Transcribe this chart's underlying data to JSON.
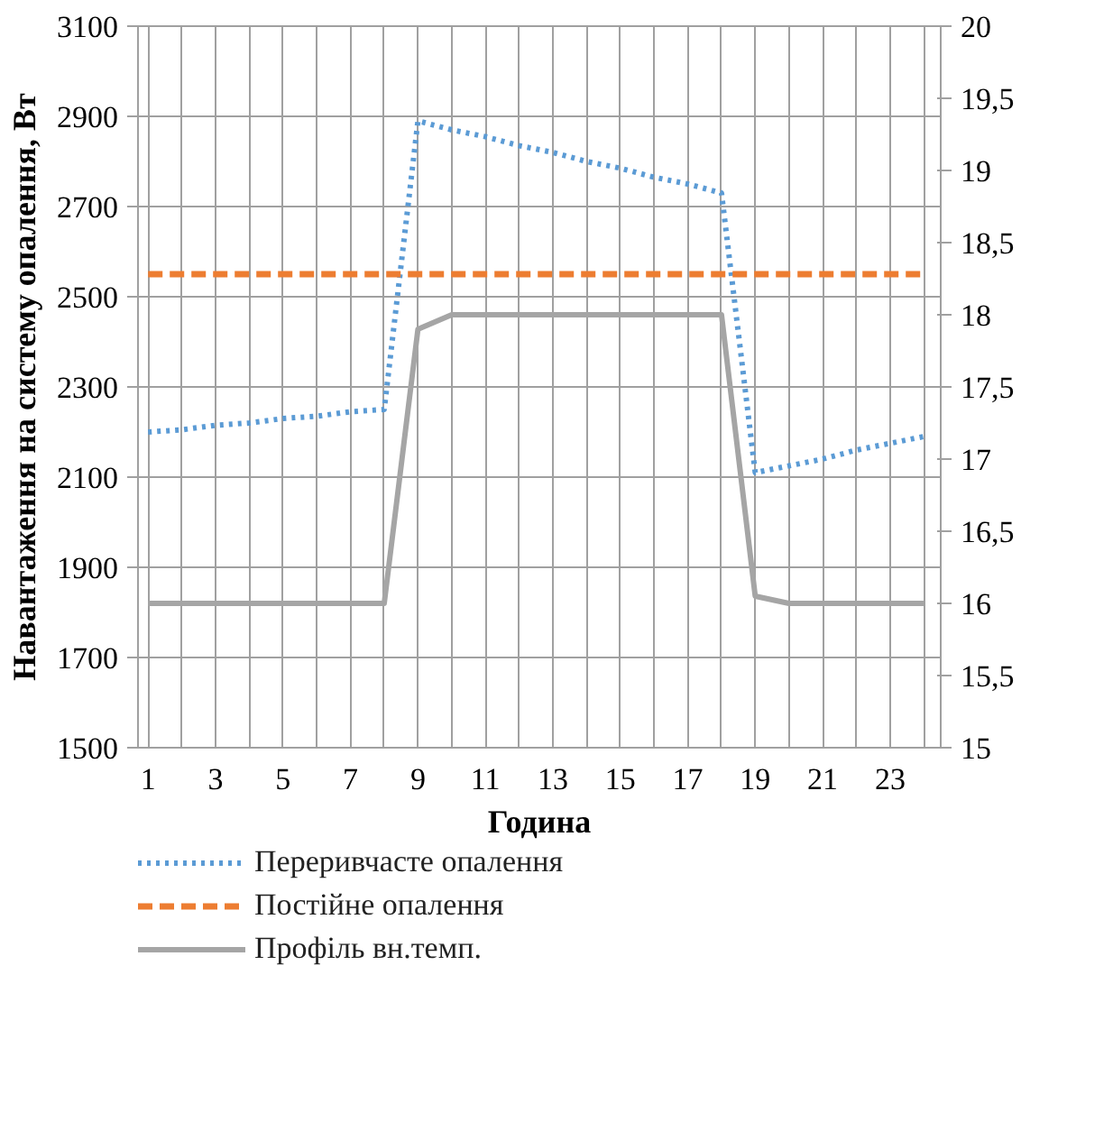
{
  "chart_data": {
    "type": "line",
    "xlabel": "Година",
    "ylabel": "Навантаження на систему опалення, Вт",
    "x": [
      1,
      2,
      3,
      4,
      5,
      6,
      7,
      8,
      9,
      10,
      11,
      12,
      13,
      14,
      15,
      16,
      17,
      18,
      19,
      20,
      21,
      22,
      23,
      24
    ],
    "xlim": [
      0.7,
      24.5
    ],
    "xticks": [
      1,
      {
        "value": 2,
        "label": null
      },
      3,
      {
        "value": 4,
        "label": null
      },
      5,
      {
        "value": 6,
        "label": null
      },
      7,
      {
        "value": 8,
        "label": null
      },
      9,
      {
        "value": 10,
        "label": null
      },
      11,
      {
        "value": 12,
        "label": null
      },
      13,
      {
        "value": 14,
        "label": null
      },
      15,
      {
        "value": 16,
        "label": null
      },
      17,
      {
        "value": 18,
        "label": null
      },
      19,
      {
        "value": 20,
        "label": null
      },
      21,
      {
        "value": 22,
        "label": null
      },
      23,
      {
        "value": 24,
        "label": null
      }
    ],
    "ylim": [
      1500,
      3100
    ],
    "yticks": [
      1500,
      1700,
      1900,
      2100,
      2300,
      2500,
      2700,
      2900,
      3100
    ],
    "y2lim": [
      15,
      20
    ],
    "y2ticks": [
      15,
      {
        "value": 15.5,
        "label": "15,5"
      },
      16,
      {
        "value": 16.5,
        "label": "16,5"
      },
      17,
      {
        "value": 17.5,
        "label": "17,5"
      },
      18,
      {
        "value": 18.5,
        "label": "18,5"
      },
      19,
      {
        "value": 19.5,
        "label": "19,5"
      },
      20
    ],
    "grid": true,
    "legend": "bottom",
    "marker": "none",
    "series": [
      {
        "name": "Переривчасте опалення",
        "color": "#5b9bd5",
        "line_style": "dotted",
        "values": [
          2200,
          2205,
          2215,
          2220,
          2230,
          2235,
          2245,
          2250,
          2890,
          2870,
          2855,
          2835,
          2820,
          2800,
          2785,
          2765,
          2750,
          2730,
          2110,
          2125,
          2140,
          2160,
          2175,
          2190
        ]
      },
      {
        "name": "Постійне опалення",
        "color": "#ed7d31",
        "line_style": "dashed",
        "values": [
          2550,
          2550,
          2550,
          2550,
          2550,
          2550,
          2550,
          2550,
          2550,
          2550,
          2550,
          2550,
          2550,
          2550,
          2550,
          2550,
          2550,
          2550,
          2550,
          2550,
          2550,
          2550,
          2550,
          2550
        ]
      },
      {
        "name": "Профіль вн.темп.",
        "color": "#a5a5a5",
        "line_style": "solid",
        "axis": "y2",
        "values": [
          16,
          16,
          16,
          16,
          16,
          16,
          16,
          16,
          17.9,
          18,
          18,
          18,
          18,
          18,
          18,
          18,
          18,
          18,
          16.05,
          16,
          16,
          16,
          16,
          16
        ]
      }
    ]
  }
}
